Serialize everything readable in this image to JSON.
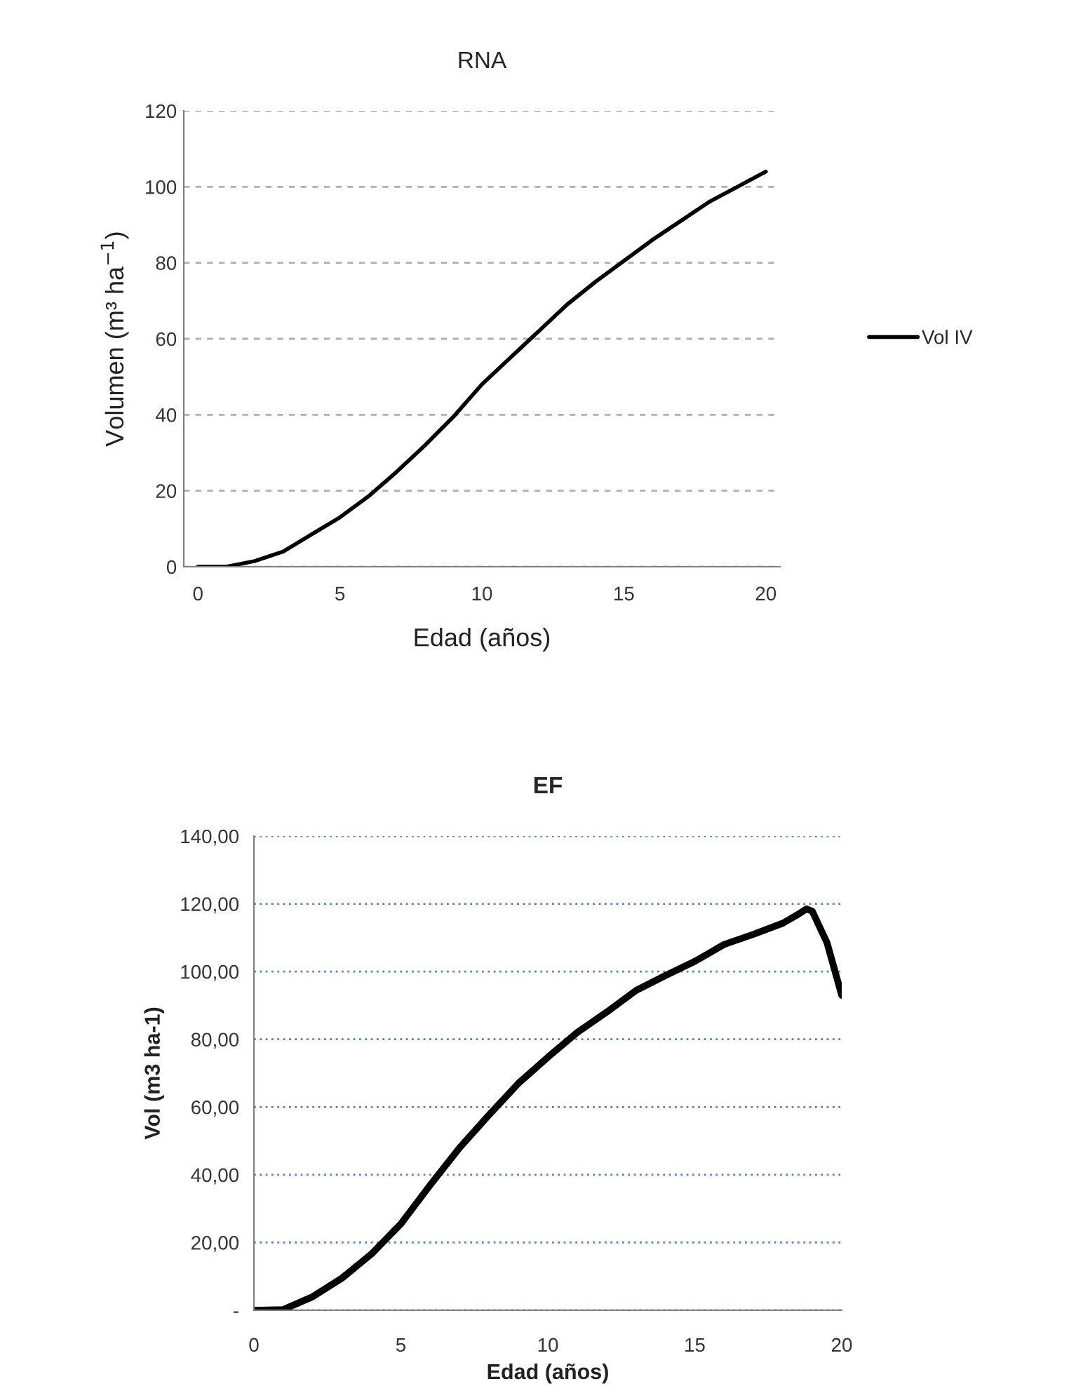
{
  "chart_data": [
    {
      "type": "line",
      "title": "RNA",
      "xlabel": "Edad (años)",
      "ylabel": "Volumen (m³ ha$^{−1}$)",
      "x": [
        0,
        1,
        2,
        3,
        4,
        5,
        6,
        7,
        8,
        9,
        10,
        11,
        12,
        13,
        14,
        15,
        16,
        17,
        18,
        19,
        20
      ],
      "series": [
        {
          "name": "Vol IV",
          "color": "#000000",
          "values": [
            0,
            0,
            1.5,
            4,
            8.5,
            13,
            18.5,
            25,
            32,
            39.5,
            48,
            55,
            62,
            69,
            75,
            80.5,
            86,
            91,
            96,
            100,
            104
          ]
        }
      ],
      "xlim": [
        -0.5,
        20.5
      ],
      "xticks": [
        0,
        5,
        10,
        15,
        20
      ],
      "ylim": [
        0,
        120
      ],
      "yticks": [
        0,
        20,
        40,
        60,
        80,
        100,
        120
      ],
      "grid": "y",
      "legend": "right",
      "marker": "none",
      "line_style": "solid"
    },
    {
      "type": "line",
      "title": "EF",
      "xlabel": "Edad (años)",
      "ylabel": "Vol (m3 ha-1)",
      "x": [
        0,
        1,
        2,
        3,
        4,
        5,
        6,
        7,
        8,
        9,
        10,
        11,
        12,
        13,
        14,
        15,
        16,
        17,
        18,
        18.5,
        18.8,
        19,
        19.5,
        20
      ],
      "series": [
        {
          "color": "#000000",
          "values": [
            0,
            0.2,
            4,
            9.5,
            16.6,
            25.5,
            37,
            48,
            57.7,
            67,
            74.7,
            82,
            88,
            94.4,
            98.8,
            103,
            108,
            111,
            114.3,
            116.8,
            118.5,
            117.8,
            108.5,
            93
          ]
        }
      ],
      "xlim": [
        0,
        20
      ],
      "xticks": [
        0,
        5,
        10,
        15,
        20
      ],
      "ylim": [
        0,
        140
      ],
      "yticks": [
        {
          "value": 0,
          "label": "-"
        },
        {
          "value": 20,
          "label": "20,00"
        },
        {
          "value": 40,
          "label": "40,00"
        },
        {
          "value": 60,
          "label": "60,00"
        },
        {
          "value": 80,
          "label": "80,00"
        },
        {
          "value": 100,
          "label": "100,00"
        },
        {
          "value": 120,
          "label": "120,00"
        },
        {
          "value": 140,
          "label": "140,00"
        }
      ],
      "grid": "y",
      "marker": "none",
      "line_style": "solid"
    }
  ]
}
